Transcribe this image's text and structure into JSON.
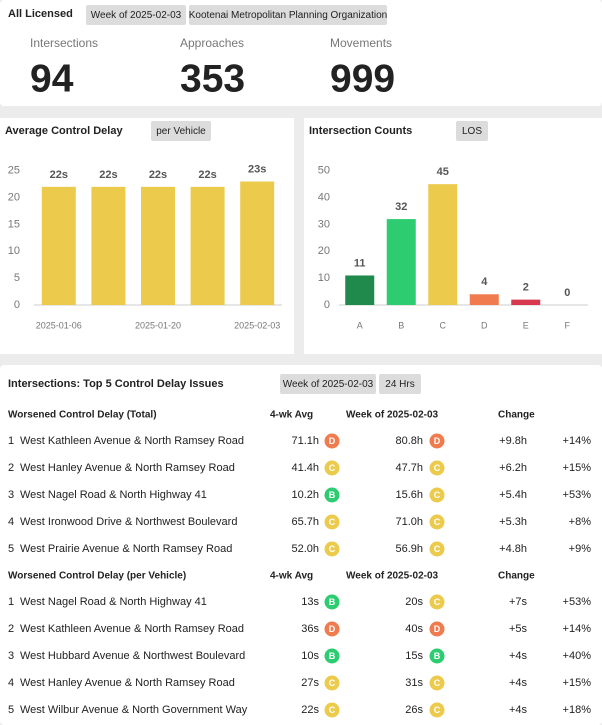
{
  "header": {
    "title": "All Licensed",
    "week": "Week of 2025-02-03",
    "organization": "Kootenai Metropolitan Planning Organization",
    "stats": [
      {
        "label": "Intersections",
        "value": 94
      },
      {
        "label": "Approaches",
        "value": 353
      },
      {
        "label": "Movements",
        "value": 999
      }
    ]
  },
  "chart_data": [
    {
      "type": "bar",
      "title": "Average Control Delay",
      "selector": "per Vehicle",
      "categories": [
        "2025-01-06",
        null,
        "2025-01-20",
        null,
        "2025-02-03"
      ],
      "values": [
        22,
        22,
        22,
        22,
        23
      ],
      "value_labels": [
        "22s",
        "22s",
        "22s",
        "22s",
        "23s"
      ],
      "color": "#ecca4c",
      "ylim": [
        0,
        27
      ],
      "yticks": [
        0,
        5,
        10,
        15,
        20,
        25
      ]
    },
    {
      "type": "bar",
      "title": "Intersection Counts",
      "selector": "LOS",
      "categories": [
        "A",
        "B",
        "C",
        "D",
        "E",
        "F"
      ],
      "values": [
        11,
        32,
        45,
        4,
        2,
        0
      ],
      "colors": [
        "#1f8a4c",
        "#2ecc71",
        "#ecca4c",
        "#ef7b4e",
        "#d8384d",
        "#999999"
      ],
      "ylim": [
        0,
        54
      ],
      "yticks": [
        0,
        10,
        20,
        30,
        40,
        50
      ]
    }
  ],
  "tables_panel": {
    "title": "Intersections: Top 5 Control Delay Issues",
    "week": "Week of 2025-02-03",
    "period": "24 Hrs",
    "tables": [
      {
        "columns": [
          "Worsened Control Delay (Total)",
          "4-wk Avg",
          "Week of 2025-02-03",
          "Change"
        ],
        "rows": [
          [
            1,
            "West Kathleen Avenue & North Ramsey Road",
            "71.1h",
            "D",
            "80.8h",
            "D",
            "+9.8h",
            "+14%"
          ],
          [
            2,
            "West Hanley Avenue & North Ramsey Road",
            "41.4h",
            "C",
            "47.7h",
            "C",
            "+6.2h",
            "+15%"
          ],
          [
            3,
            "West Nagel Road & North Highway 41",
            "10.2h",
            "B",
            "15.6h",
            "C",
            "+5.4h",
            "+53%"
          ],
          [
            4,
            "West Ironwood Drive & Northwest Boulevard",
            "65.7h",
            "C",
            "71.0h",
            "C",
            "+5.3h",
            "+8%"
          ],
          [
            5,
            "West Prairie Avenue & North Ramsey Road",
            "52.0h",
            "C",
            "56.9h",
            "C",
            "+4.8h",
            "+9%"
          ]
        ]
      },
      {
        "columns": [
          "Worsened Control Delay (per Vehicle)",
          "4-wk Avg",
          "Week of 2025-02-03",
          "Change"
        ],
        "rows": [
          [
            1,
            "West Nagel Road & North Highway 41",
            "13s",
            "B",
            "20s",
            "C",
            "+7s",
            "+53%"
          ],
          [
            2,
            "West Kathleen Avenue & North Ramsey Road",
            "36s",
            "D",
            "40s",
            "D",
            "+5s",
            "+14%"
          ],
          [
            3,
            "West Hubbard Avenue & Northwest Boulevard",
            "10s",
            "B",
            "15s",
            "B",
            "+4s",
            "+40%"
          ],
          [
            4,
            "West Hanley Avenue & North Ramsey Road",
            "27s",
            "C",
            "31s",
            "C",
            "+4s",
            "+15%"
          ],
          [
            5,
            "West Wilbur Avenue & North Government Way",
            "22s",
            "C",
            "26s",
            "C",
            "+4s",
            "+18%"
          ]
        ]
      }
    ]
  }
}
